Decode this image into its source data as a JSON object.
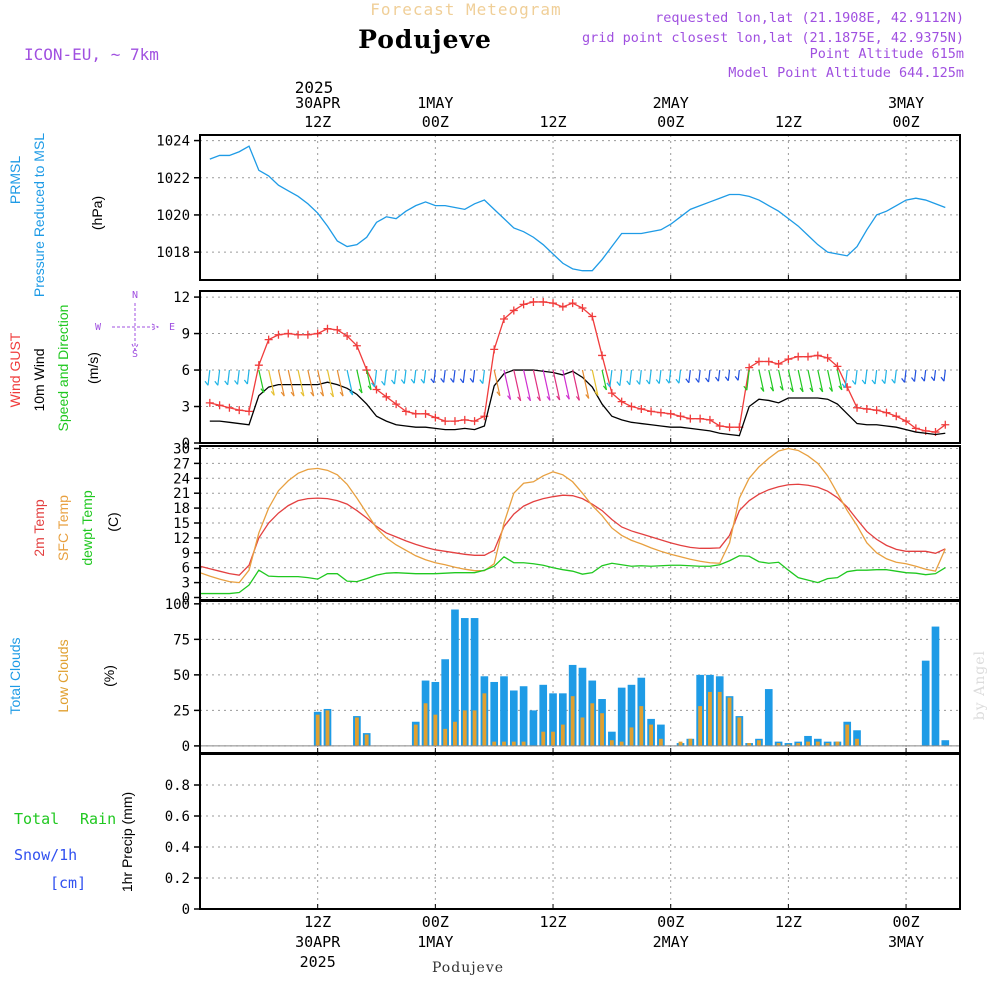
{
  "header": {
    "title_small": "Forecast Meteogram",
    "title": "Podujeve",
    "model": "ICON-EU, ~ 7km",
    "requested": "requested lon,lat (21.1908E, 42.9112N)",
    "gridpoint": "grid point closest lon,lat (21.1875E, 42.9375N)",
    "point_alt": "Point Altitude 615m",
    "model_alt": "Model Point Altitude 644.125m",
    "footer": "Podujeve",
    "watermark": "by Angel"
  },
  "time_axis": {
    "top_year": "2025",
    "ticks": [
      {
        "t": 12,
        "line1": "30APR",
        "line2": "12Z"
      },
      {
        "t": 24,
        "line1": "1MAY",
        "line2": "00Z"
      },
      {
        "t": 36,
        "line1": "",
        "line2": "12Z"
      },
      {
        "t": 48,
        "line1": "2MAY",
        "line2": "00Z"
      },
      {
        "t": 60,
        "line1": "",
        "line2": "12Z"
      },
      {
        "t": 72,
        "line1": "3MAY",
        "line2": "00Z"
      }
    ],
    "bottom_ticks": [
      {
        "t": 12,
        "l1": "12Z",
        "l2": "30APR",
        "l3": "2025"
      },
      {
        "t": 24,
        "l1": "00Z",
        "l2": "1MAY",
        "l3": ""
      },
      {
        "t": 36,
        "l1": "12Z",
        "l2": "",
        "l3": ""
      },
      {
        "t": 48,
        "l1": "00Z",
        "l2": "2MAY",
        "l3": ""
      },
      {
        "t": 60,
        "l1": "12Z",
        "l2": "",
        "l3": ""
      },
      {
        "t": 72,
        "l1": "00Z",
        "l2": "3MAY",
        "l3": ""
      }
    ]
  },
  "colors": {
    "pressure": "#1e9be6",
    "gust": "#f03c3c",
    "wind": "#000000",
    "t2m": "#e34040",
    "sfc": "#e8a040",
    "dew": "#20c820",
    "total_cloud": "#1e9be6",
    "low_cloud": "#e0a030",
    "rain": "#20c820",
    "snow": "#3050f0",
    "dir": "#a050e0",
    "grid": "#9a9a9a"
  },
  "chart_data": [
    {
      "type": "line",
      "panel": "pressure",
      "labels": [
        "PRMSL",
        "Pressure Reduced to MSL",
        "(hPa)"
      ],
      "ylim": [
        1016.5,
        1024.3
      ],
      "yticks": [
        1018,
        1020,
        1022,
        1024
      ],
      "x": [
        1,
        2,
        3,
        4,
        5,
        6,
        7,
        8,
        9,
        10,
        11,
        12,
        13,
        14,
        15,
        16,
        17,
        18,
        19,
        20,
        21,
        22,
        23,
        24,
        25,
        26,
        27,
        28,
        29,
        30,
        31,
        32,
        33,
        34,
        35,
        36,
        37,
        38,
        39,
        40,
        41,
        42,
        43,
        44,
        45,
        46,
        47,
        48,
        49,
        50,
        51,
        52,
        53,
        54,
        55,
        56,
        57,
        58,
        59,
        60,
        61,
        62,
        63,
        64,
        65,
        66,
        67,
        68,
        69,
        70,
        71,
        72,
        73,
        74,
        75,
        76
      ],
      "series": [
        {
          "values": [
            1023.0,
            1023.2,
            1023.2,
            1023.4,
            1023.7,
            1022.4,
            1022.1,
            1021.6,
            1021.3,
            1021.0,
            1020.6,
            1020.1,
            1019.4,
            1018.6,
            1018.3,
            1018.4,
            1018.8,
            1019.6,
            1019.9,
            1019.8,
            1020.2,
            1020.5,
            1020.7,
            1020.5,
            1020.5,
            1020.4,
            1020.3,
            1020.6,
            1020.8,
            1020.3,
            1019.8,
            1019.3,
            1019.1,
            1018.8,
            1018.4,
            1017.9,
            1017.4,
            1017.1,
            1017.0,
            1017.0,
            1017.6,
            1018.3,
            1019.0,
            1019.0,
            1019.0,
            1019.1,
            1019.2,
            1019.5,
            1019.9,
            1020.3,
            1020.5,
            1020.7,
            1020.9,
            1021.1,
            1021.1,
            1021.0,
            1020.8,
            1020.5,
            1020.2,
            1019.8,
            1019.4,
            1018.9,
            1018.4,
            1018.0,
            1017.9,
            1017.8,
            1018.3,
            1019.2,
            1020.0,
            1020.2,
            1020.5,
            1020.8,
            1020.9,
            1020.8,
            1020.6,
            1020.4
          ]
        }
      ]
    },
    {
      "type": "line",
      "panel": "wind",
      "labels": [
        "Wind GUST",
        "10m Wind",
        "Speed and Direction",
        "(m/s)"
      ],
      "dir_labels": {
        "n": "N",
        "e": "E",
        "s": "S",
        "w": "W"
      },
      "ylim": [
        0,
        12.5
      ],
      "yticks": [
        0,
        3,
        6,
        9,
        12
      ],
      "x": [
        1,
        2,
        3,
        4,
        5,
        6,
        7,
        8,
        9,
        10,
        11,
        12,
        13,
        14,
        15,
        16,
        17,
        18,
        19,
        20,
        21,
        22,
        23,
        24,
        25,
        26,
        27,
        28,
        29,
        30,
        31,
        32,
        33,
        34,
        35,
        36,
        37,
        38,
        39,
        40,
        41,
        42,
        43,
        44,
        45,
        46,
        47,
        48,
        49,
        50,
        51,
        52,
        53,
        54,
        55,
        56,
        57,
        58,
        59,
        60,
        61,
        62,
        63,
        64,
        65,
        66,
        67,
        68,
        69,
        70,
        71,
        72,
        73,
        74,
        75,
        76
      ],
      "series": [
        {
          "name": "Wind GUST",
          "values": [
            3.3,
            3.1,
            2.9,
            2.7,
            2.6,
            6.4,
            8.5,
            8.9,
            9.0,
            8.9,
            8.9,
            9.0,
            9.4,
            9.3,
            8.8,
            8.0,
            6.0,
            4.4,
            3.8,
            3.2,
            2.6,
            2.4,
            2.4,
            2.1,
            1.8,
            1.8,
            1.9,
            1.8,
            2.2,
            7.7,
            10.2,
            10.9,
            11.4,
            11.6,
            11.6,
            11.5,
            11.2,
            11.5,
            11.1,
            10.4,
            7.2,
            4.1,
            3.4,
            3.0,
            2.8,
            2.6,
            2.5,
            2.4,
            2.2,
            2.0,
            2.0,
            1.9,
            1.4,
            1.3,
            1.3,
            6.2,
            6.7,
            6.7,
            6.5,
            6.9,
            7.1,
            7.1,
            7.2,
            7.0,
            6.3,
            4.6,
            2.9,
            2.8,
            2.7,
            2.5,
            2.2,
            1.8,
            1.2,
            1.0,
            0.9,
            1.5
          ]
        },
        {
          "name": "10m Wind",
          "values": [
            1.8,
            1.8,
            1.7,
            1.6,
            1.5,
            3.9,
            4.6,
            4.8,
            4.8,
            4.8,
            4.8,
            4.8,
            5.0,
            4.8,
            4.5,
            4.0,
            3.2,
            2.2,
            1.8,
            1.5,
            1.4,
            1.3,
            1.3,
            1.2,
            1.1,
            1.1,
            1.2,
            1.1,
            1.4,
            4.7,
            5.7,
            6.0,
            6.0,
            6.0,
            5.9,
            5.8,
            5.6,
            5.9,
            5.4,
            4.6,
            3.2,
            2.2,
            1.9,
            1.7,
            1.6,
            1.5,
            1.4,
            1.3,
            1.3,
            1.2,
            1.1,
            1.0,
            0.8,
            0.7,
            0.6,
            3.0,
            3.6,
            3.5,
            3.3,
            3.7,
            3.7,
            3.7,
            3.7,
            3.6,
            3.2,
            2.4,
            1.6,
            1.5,
            1.5,
            1.4,
            1.3,
            1.1,
            0.9,
            0.8,
            0.7,
            0.8
          ]
        }
      ]
    },
    {
      "type": "line",
      "panel": "temperature",
      "labels": [
        "2m Temp",
        "SFC Temp",
        "dewpt Temp",
        "(C)"
      ],
      "ylim": [
        -0.5,
        30.5
      ],
      "yticks": [
        0,
        3,
        6,
        9,
        12,
        15,
        18,
        21,
        24,
        27,
        30
      ],
      "x": [
        0,
        1,
        2,
        3,
        4,
        5,
        6,
        7,
        8,
        9,
        10,
        11,
        12,
        13,
        14,
        15,
        16,
        17,
        18,
        19,
        20,
        21,
        22,
        23,
        24,
        25,
        26,
        27,
        28,
        29,
        30,
        31,
        32,
        33,
        34,
        35,
        36,
        37,
        38,
        39,
        40,
        41,
        42,
        43,
        44,
        45,
        46,
        47,
        48,
        49,
        50,
        51,
        52,
        53,
        54,
        55,
        56,
        57,
        58,
        59,
        60,
        61,
        62,
        63,
        64,
        65,
        66,
        67,
        68,
        69,
        70,
        71,
        72,
        73,
        74,
        75,
        76
      ],
      "series": [
        {
          "name": "2m Temp",
          "values": [
            6.3,
            5.8,
            5.3,
            4.8,
            4.5,
            6.5,
            12.0,
            15.0,
            17.0,
            18.5,
            19.5,
            19.9,
            20.0,
            19.9,
            19.5,
            18.8,
            17.5,
            16.0,
            14.3,
            13.0,
            12.2,
            11.4,
            10.7,
            10.1,
            9.6,
            9.3,
            9.0,
            8.7,
            8.5,
            8.5,
            9.5,
            14.3,
            16.8,
            18.4,
            19.3,
            19.9,
            20.3,
            20.6,
            20.5,
            19.9,
            18.8,
            17.5,
            15.7,
            14.2,
            13.4,
            12.8,
            12.2,
            11.6,
            11.0,
            10.5,
            10.1,
            9.9,
            9.9,
            10.0,
            12.5,
            17.5,
            19.5,
            20.8,
            21.7,
            22.3,
            22.7,
            22.8,
            22.6,
            22.2,
            21.4,
            20.1,
            18.2,
            15.7,
            13.3,
            11.7,
            10.5,
            9.7,
            9.3,
            9.3,
            9.3,
            8.9,
            9.8
          ]
        },
        {
          "name": "SFC Temp",
          "values": [
            5.0,
            4.3,
            3.7,
            3.2,
            3.0,
            5.5,
            13.0,
            18.0,
            21.5,
            23.5,
            25.0,
            25.8,
            26.0,
            25.6,
            24.7,
            22.8,
            20.0,
            17.0,
            14.0,
            12.0,
            10.6,
            9.5,
            8.4,
            7.6,
            7.0,
            6.6,
            6.1,
            5.7,
            5.4,
            5.4,
            6.8,
            15.0,
            21.0,
            23.0,
            23.3,
            24.5,
            25.3,
            24.7,
            23.3,
            21.0,
            18.5,
            16.5,
            14.0,
            12.5,
            11.5,
            10.8,
            10.0,
            9.3,
            8.7,
            8.2,
            7.7,
            7.3,
            7.0,
            6.9,
            11.0,
            20.0,
            24.0,
            26.3,
            28.0,
            29.5,
            30.0,
            29.6,
            28.5,
            27.0,
            24.5,
            21.0,
            17.5,
            14.5,
            11.0,
            9.0,
            7.8,
            7.1,
            6.8,
            6.3,
            5.7,
            5.3,
            9.8
          ]
        },
        {
          "name": "dewpt Temp",
          "values": [
            0.8,
            0.8,
            0.8,
            0.8,
            1.0,
            2.5,
            5.5,
            4.3,
            4.2,
            4.2,
            4.2,
            4.0,
            3.7,
            4.8,
            4.8,
            3.3,
            3.2,
            3.8,
            4.5,
            4.9,
            5.0,
            4.9,
            4.8,
            4.8,
            4.8,
            4.9,
            5.0,
            5.0,
            5.0,
            5.5,
            6.3,
            8.2,
            7.0,
            7.0,
            6.8,
            6.5,
            6.0,
            5.6,
            5.3,
            4.7,
            5.0,
            6.4,
            6.9,
            6.6,
            6.3,
            6.4,
            6.3,
            6.4,
            6.5,
            6.5,
            6.4,
            6.3,
            6.3,
            6.6,
            7.4,
            8.4,
            8.3,
            7.2,
            6.9,
            7.1,
            5.5,
            4.0,
            3.5,
            3.0,
            3.8,
            4.0,
            5.2,
            5.5,
            5.5,
            5.6,
            5.6,
            5.3,
            5.0,
            4.9,
            4.6,
            4.8,
            6.0
          ]
        }
      ]
    },
    {
      "type": "bar",
      "panel": "clouds",
      "labels": [
        "Total Clouds",
        "Low Clouds",
        "(%)"
      ],
      "ylim": [
        -5,
        102
      ],
      "yticks": [
        0,
        25,
        50,
        75,
        100
      ],
      "x": [
        1,
        2,
        3,
        4,
        5,
        6,
        7,
        8,
        9,
        10,
        11,
        12,
        13,
        14,
        15,
        16,
        17,
        18,
        19,
        20,
        21,
        22,
        23,
        24,
        25,
        26,
        27,
        28,
        29,
        30,
        31,
        32,
        33,
        34,
        35,
        36,
        37,
        38,
        39,
        40,
        41,
        42,
        43,
        44,
        45,
        46,
        47,
        48,
        49,
        50,
        51,
        52,
        53,
        54,
        55,
        56,
        57,
        58,
        59,
        60,
        61,
        62,
        63,
        64,
        65,
        66,
        67,
        68,
        69,
        70,
        71,
        72,
        73,
        74,
        75,
        76
      ],
      "series": [
        {
          "name": "Total Clouds",
          "values": [
            0,
            0,
            0,
            0,
            0,
            0,
            0,
            0,
            0,
            0,
            0,
            24,
            26,
            0,
            0,
            21,
            9,
            0,
            0,
            0,
            0,
            17,
            46,
            45,
            61,
            96,
            90,
            90,
            49,
            45,
            49,
            39,
            42,
            25,
            43,
            37,
            37,
            57,
            55,
            46,
            33,
            10,
            41,
            43,
            48,
            19,
            15,
            0,
            2,
            5,
            50,
            50,
            49,
            35,
            21,
            2,
            5,
            40,
            3,
            2,
            3,
            7,
            5,
            3,
            3,
            17,
            11,
            0,
            0,
            0,
            0,
            0,
            0,
            60,
            84,
            4
          ]
        },
        {
          "name": "Low Clouds",
          "values": [
            0,
            0,
            0,
            0,
            0,
            0,
            0,
            0,
            0,
            0,
            0,
            22,
            25,
            0,
            0,
            20,
            8,
            0,
            0,
            0,
            0,
            15,
            30,
            22,
            12,
            17,
            25,
            25,
            37,
            3,
            3,
            3,
            3,
            0,
            10,
            10,
            15,
            35,
            20,
            30,
            23,
            4,
            3,
            13,
            28,
            15,
            5,
            0,
            3,
            5,
            28,
            38,
            38,
            34,
            20,
            2,
            4,
            0,
            2,
            1,
            2,
            3,
            3,
            2,
            3,
            15,
            5,
            0,
            0,
            0,
            0,
            0,
            0,
            0,
            0,
            0
          ]
        }
      ]
    },
    {
      "type": "line",
      "panel": "precip",
      "labels": [
        "Total",
        "Rain",
        "Snow/1h",
        "[cm]",
        "1hr Precip (mm)"
      ],
      "ylim": [
        0,
        1.0
      ],
      "yticks": [
        0,
        0.2,
        0.4,
        0.6,
        0.8
      ],
      "ytick_labels": [
        "0",
        "0.2",
        "0.4",
        "0.6",
        "0.8"
      ],
      "x": [
        0,
        76
      ],
      "series": [
        {
          "values": [
            0,
            0
          ]
        }
      ]
    }
  ]
}
